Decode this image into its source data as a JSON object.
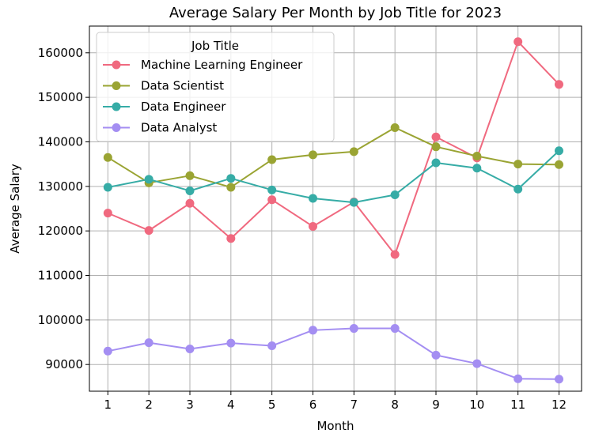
{
  "chart_data": {
    "type": "line",
    "title": "Average Salary Per Month by Job Title for 2023",
    "xlabel": "Month",
    "ylabel": "Average Salary",
    "x": [
      1,
      2,
      3,
      4,
      5,
      6,
      7,
      8,
      9,
      10,
      11,
      12
    ],
    "x_tick_labels": [
      "1",
      "2",
      "3",
      "4",
      "5",
      "6",
      "7",
      "8",
      "9",
      "10",
      "11",
      "12"
    ],
    "y_ticks": [
      90000,
      100000,
      110000,
      120000,
      130000,
      140000,
      150000,
      160000
    ],
    "y_tick_labels": [
      "90000",
      "100000",
      "110000",
      "120000",
      "130000",
      "140000",
      "150000",
      "160000"
    ],
    "xlim": [
      0.55,
      12.55
    ],
    "ylim": [
      84000,
      166000
    ],
    "grid": true,
    "legend": {
      "title": "Job Title",
      "position": "top-left"
    },
    "series": [
      {
        "name": "Machine Learning Engineer",
        "color": "#f0697f",
        "values": [
          124000,
          120100,
          126200,
          118300,
          127000,
          121000,
          126500,
          114700,
          141100,
          136400,
          162500,
          152900
        ]
      },
      {
        "name": "Data Scientist",
        "color": "#9aa433",
        "values": [
          136500,
          130800,
          132400,
          129800,
          136000,
          137100,
          137800,
          143200,
          138900,
          136800,
          135000,
          134900
        ]
      },
      {
        "name": "Data Engineer",
        "color": "#36aca6",
        "values": [
          129800,
          131600,
          129000,
          131800,
          129200,
          127300,
          126400,
          128100,
          135300,
          134100,
          129400,
          138000
        ]
      },
      {
        "name": "Data Analyst",
        "color": "#a48ef2",
        "values": [
          93000,
          94900,
          93500,
          94800,
          94200,
          97700,
          98100,
          98100,
          92100,
          90200,
          86800,
          86700
        ]
      }
    ]
  }
}
